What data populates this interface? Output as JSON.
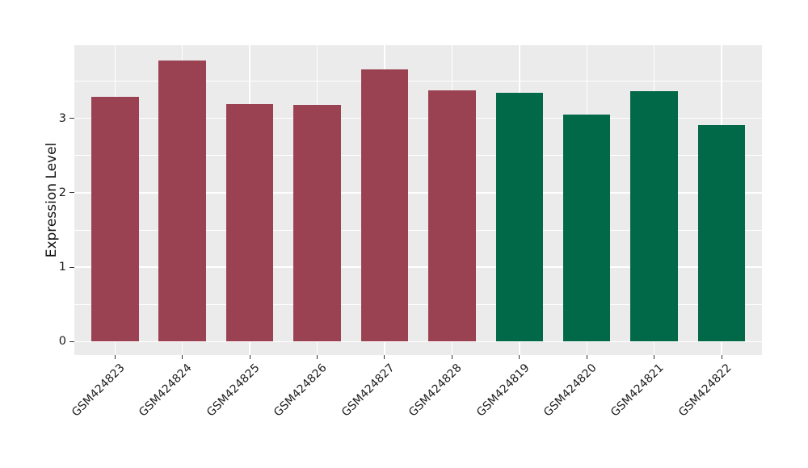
{
  "chart_data": {
    "type": "bar",
    "title": "",
    "xlabel": "",
    "ylabel": "Expression Level",
    "categories": [
      "GSM424823",
      "GSM424824",
      "GSM424825",
      "GSM424826",
      "GSM424827",
      "GSM424828",
      "GSM424819",
      "GSM424820",
      "GSM424821",
      "GSM424822"
    ],
    "values": [
      3.29,
      3.78,
      3.19,
      3.18,
      3.66,
      3.37,
      3.34,
      3.05,
      3.36,
      2.91
    ],
    "bar_colors": [
      "#9B4252",
      "#9B4252",
      "#9B4252",
      "#9B4252",
      "#9B4252",
      "#9B4252",
      "#016848",
      "#016848",
      "#016848",
      "#016848"
    ],
    "group_colors": {
      "maroon_group": "#9B4252",
      "green_group": "#016848"
    },
    "yticks": [
      0,
      1,
      2,
      3
    ],
    "minor_yticks": [
      0.5,
      1.5,
      2.5,
      3.5
    ],
    "ylim": [
      -0.19,
      3.98
    ],
    "x_tick_rotation_deg": 45,
    "legend_position": "none",
    "grid": "on",
    "panel_background": "#EBEBEB",
    "grid_color": "#FFFFFF",
    "figure_background": "#FFFFFF",
    "axis_text_color": "#1c1c1c"
  }
}
